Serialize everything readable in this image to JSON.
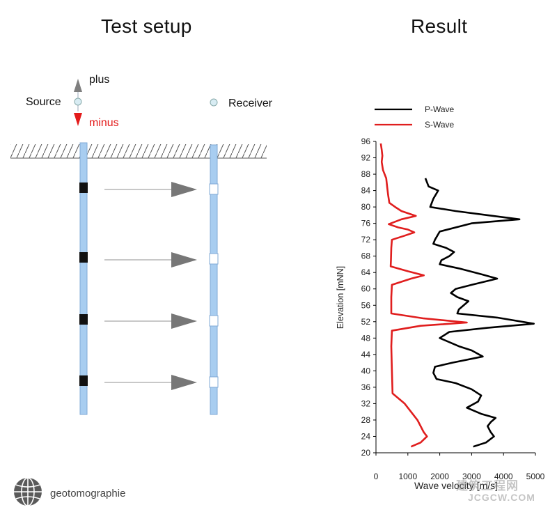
{
  "titles": {
    "left": "Test setup",
    "right": "Result"
  },
  "setup": {
    "plus_label": "plus",
    "minus_label": "minus",
    "source_label": "Source",
    "receiver_label": "Receiver",
    "colors": {
      "borehole": "#a8cdf0",
      "plus_arrow": "#7f7f7f",
      "minus_arrow": "#e31b1b",
      "ray": "#909090",
      "ray_head": "#777777"
    }
  },
  "chart_data": {
    "type": "line",
    "xlabel": "Wave velocity [m/s]",
    "ylabel": "Elevation [mNN]",
    "xlim": [
      0,
      5000
    ],
    "ylim": [
      20,
      96
    ],
    "xticks": [
      0,
      1000,
      2000,
      3000,
      4000,
      5000
    ],
    "yticks": [
      20,
      24,
      28,
      32,
      36,
      40,
      44,
      48,
      52,
      56,
      60,
      64,
      68,
      72,
      76,
      80,
      84,
      88,
      92,
      96
    ],
    "legend_position": "top",
    "series": [
      {
        "name": "P-Wave",
        "color": "#000000",
        "points": [
          [
            1550,
            87
          ],
          [
            1650,
            85
          ],
          [
            1950,
            84
          ],
          [
            1800,
            82
          ],
          [
            1700,
            80
          ],
          [
            2500,
            79
          ],
          [
            3500,
            78
          ],
          [
            4500,
            77
          ],
          [
            3000,
            76
          ],
          [
            2000,
            74
          ],
          [
            1850,
            72
          ],
          [
            1800,
            71
          ],
          [
            2200,
            70
          ],
          [
            2450,
            69
          ],
          [
            2300,
            68
          ],
          [
            2050,
            67
          ],
          [
            2000,
            66
          ],
          [
            2600,
            65
          ],
          [
            3350,
            63.5
          ],
          [
            3800,
            62.5
          ],
          [
            3000,
            61
          ],
          [
            2500,
            60
          ],
          [
            2350,
            59
          ],
          [
            2550,
            58
          ],
          [
            2900,
            57
          ],
          [
            2600,
            55
          ],
          [
            2550,
            54
          ],
          [
            3800,
            53
          ],
          [
            4950,
            51.5
          ],
          [
            3500,
            50.5
          ],
          [
            2300,
            49.5
          ],
          [
            2000,
            48
          ],
          [
            2600,
            46
          ],
          [
            3000,
            45
          ],
          [
            3350,
            43.5
          ],
          [
            2400,
            42
          ],
          [
            1850,
            41
          ],
          [
            1800,
            39.5
          ],
          [
            1900,
            38
          ],
          [
            2500,
            37
          ],
          [
            3000,
            35.5
          ],
          [
            3300,
            34
          ],
          [
            3200,
            32.5
          ],
          [
            2850,
            31
          ],
          [
            3300,
            29.5
          ],
          [
            3750,
            28.5
          ],
          [
            3600,
            27.5
          ],
          [
            3500,
            26.5
          ],
          [
            3600,
            25
          ],
          [
            3700,
            24
          ],
          [
            3450,
            22.5
          ],
          [
            3050,
            21.5
          ]
        ]
      },
      {
        "name": "S-Wave",
        "color": "#e01e1e",
        "points": [
          [
            150,
            95.5
          ],
          [
            180,
            94
          ],
          [
            200,
            92.5
          ],
          [
            180,
            91
          ],
          [
            220,
            89
          ],
          [
            320,
            87
          ],
          [
            350,
            85
          ],
          [
            380,
            83
          ],
          [
            420,
            81
          ],
          [
            600,
            80
          ],
          [
            800,
            79
          ],
          [
            1250,
            77.8
          ],
          [
            800,
            77
          ],
          [
            400,
            75.8
          ],
          [
            700,
            75
          ],
          [
            1000,
            74.5
          ],
          [
            1200,
            73.8
          ],
          [
            900,
            73
          ],
          [
            500,
            72
          ],
          [
            480,
            70
          ],
          [
            470,
            67
          ],
          [
            460,
            65.5
          ],
          [
            1000,
            64.3
          ],
          [
            1500,
            63.3
          ],
          [
            1100,
            62.5
          ],
          [
            500,
            61
          ],
          [
            480,
            58
          ],
          [
            480,
            54
          ],
          [
            1500,
            52.8
          ],
          [
            2850,
            51.8
          ],
          [
            1400,
            51
          ],
          [
            500,
            49.8
          ],
          [
            480,
            46
          ],
          [
            500,
            40
          ],
          [
            520,
            34.5
          ],
          [
            900,
            32
          ],
          [
            1300,
            28
          ],
          [
            1500,
            25
          ],
          [
            1600,
            24
          ],
          [
            1400,
            22.5
          ],
          [
            1100,
            21.5
          ]
        ]
      }
    ]
  },
  "logo": {
    "name": "globe-logo",
    "text": "geotomographie"
  },
  "watermark": {
    "line1": "建筑工程网",
    "line2": "JCGCW.COM"
  }
}
